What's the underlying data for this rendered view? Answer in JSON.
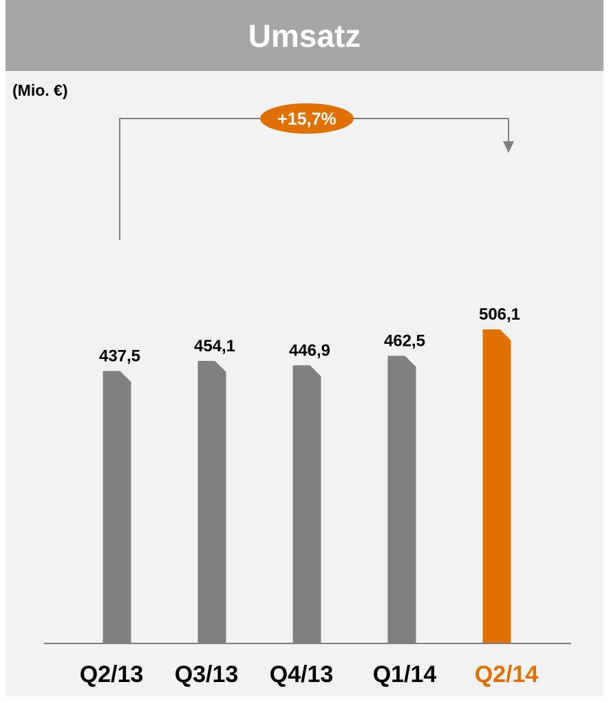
{
  "title": "Umsatz",
  "unit_label": "(Mio. €)",
  "growth_badge": "+15,7%",
  "colors": {
    "bar_default": "#808080",
    "bar_highlight": "#e07000",
    "badge": "#e07000",
    "title_bar": "#a6a6a6",
    "panel": "#f2f2f2"
  },
  "chart_data": {
    "type": "bar",
    "title": "Umsatz",
    "ylabel": "(Mio. €)",
    "categories": [
      "Q2/13",
      "Q3/13",
      "Q4/13",
      "Q1/14",
      "Q2/14"
    ],
    "values": [
      437.5,
      454.1,
      446.9,
      462.5,
      506.1
    ],
    "value_labels": [
      "437,5",
      "454,1",
      "446,9",
      "462,5",
      "506,1"
    ],
    "highlight_index": 4,
    "annotation": {
      "text": "+15,7%",
      "from": "Q2/13",
      "to": "Q2/14"
    },
    "grid": false
  }
}
